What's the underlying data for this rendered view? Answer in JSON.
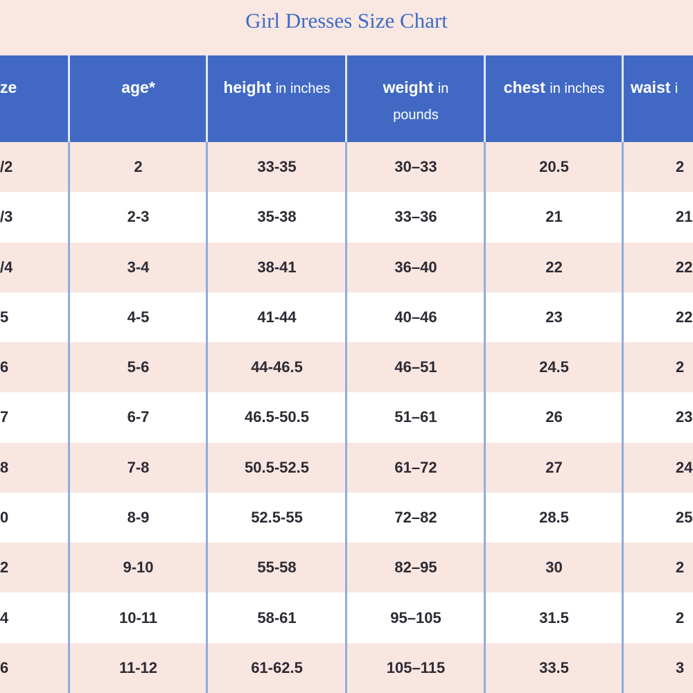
{
  "title": "Girl Dresses Size Chart",
  "table": {
    "header": [
      {
        "bold": "ze"
      },
      {
        "bold": "age*"
      },
      {
        "bold": "height",
        "light": "in inches"
      },
      {
        "bold": "weight",
        "light": "in pounds"
      },
      {
        "bold": "chest",
        "light": "in inches"
      },
      {
        "bold": "waist",
        "light": "i"
      }
    ],
    "rows": [
      [
        "/2",
        "2",
        "33-35",
        "30–33",
        "20.5",
        "2"
      ],
      [
        "/3",
        "2-3",
        "35-38",
        "33–36",
        "21",
        "21."
      ],
      [
        "/4",
        "3-4",
        "38-41",
        "36–40",
        "22",
        "22"
      ],
      [
        "5",
        "4-5",
        "41-44",
        "40–46",
        "23",
        "22"
      ],
      [
        "6",
        "5-6",
        "44-46.5",
        "46–51",
        "24.5",
        "2"
      ],
      [
        "7",
        "6-7",
        "46.5-50.5",
        "51–61",
        "26",
        "23"
      ],
      [
        "8",
        "7-8",
        "50.5-52.5",
        "61–72",
        "27",
        "24."
      ],
      [
        "0",
        "8-9",
        "52.5-55",
        "72–82",
        "28.5",
        "25"
      ],
      [
        "2",
        "9-10",
        "55-58",
        "82–95",
        "30",
        "2"
      ],
      [
        "4",
        "10-11",
        "58-61",
        "95–105",
        "31.5",
        "2"
      ],
      [
        "6",
        "11-12",
        "61-62.5",
        "105–115",
        "33.5",
        "3"
      ]
    ]
  }
}
